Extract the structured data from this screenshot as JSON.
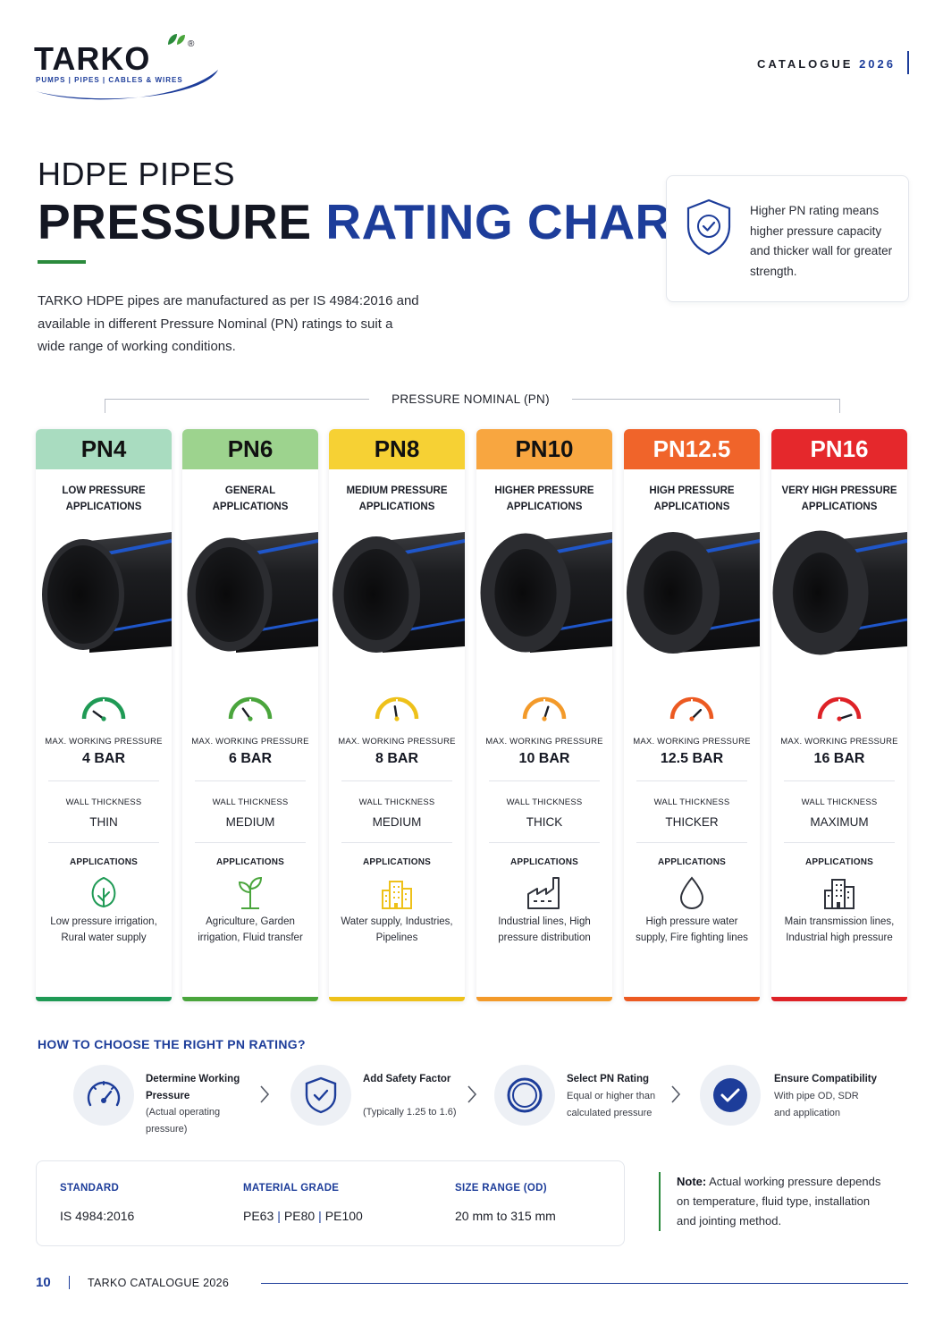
{
  "brand": {
    "name": "TARKO",
    "registered": "®",
    "tagline": "PUMPS | PIPES | CABLES & WIRES"
  },
  "header": {
    "catalogue_label": "CATALOGUE",
    "catalogue_year": "2026"
  },
  "hero": {
    "subtitle": "HDPE PIPES",
    "title_dark": "PRESSURE",
    "title_blue": "RATING CHART",
    "intro": "TARKO HDPE pipes are manufactured as per IS 4984:2016 and available in different Pressure Nominal (PN) ratings to suit a wide range of working conditions."
  },
  "info_card": {
    "icon": "shield-check-icon",
    "text": "Higher PN rating means higher pressure capacity and thicker wall for greater strength."
  },
  "pn_header": "PRESSURE NOMINAL (PN)",
  "labels": {
    "max_pressure": "MAX. WORKING PRESSURE",
    "wall_thickness": "WALL THICKNESS",
    "applications": "APPLICATIONS"
  },
  "ratings": [
    {
      "pn": "PN4",
      "subtitle_1": "LOW PRESSURE",
      "subtitle_2": "APPLICATIONS",
      "pressure": "4 BAR",
      "wall": "THIN",
      "app_icon": "leaf-icon",
      "applications": "Low pressure irrigation, Rural water supply",
      "color": "#a9dcc0",
      "accent": "#1f9a55",
      "gauge_level": 0.2
    },
    {
      "pn": "PN6",
      "subtitle_1": "GENERAL",
      "subtitle_2": "APPLICATIONS",
      "pressure": "6 BAR",
      "wall": "MEDIUM",
      "app_icon": "sprout-icon",
      "applications": "Agriculture, Garden irrigation, Fluid transfer",
      "color": "#9dd38e",
      "accent": "#4aa53c",
      "gauge_level": 0.3
    },
    {
      "pn": "PN8",
      "subtitle_1": "MEDIUM PRESSURE",
      "subtitle_2": "APPLICATIONS",
      "pressure": "8 BAR",
      "wall": "MEDIUM",
      "app_icon": "buildings-icon",
      "applications": "Water supply, Industries, Pipelines",
      "color": "#f6d134",
      "accent": "#eec11a",
      "gauge_level": 0.45
    },
    {
      "pn": "PN10",
      "subtitle_1": "HIGHER PRESSURE",
      "subtitle_2": "APPLICATIONS",
      "pressure": "10 BAR",
      "wall": "THICK",
      "app_icon": "factory-icon",
      "applications": "Industrial lines, High pressure distribution",
      "color": "#f8a640",
      "accent": "#f39a2a",
      "gauge_level": 0.6
    },
    {
      "pn": "PN12.5",
      "subtitle_1": "HIGH PRESSURE",
      "subtitle_2": "APPLICATIONS",
      "pressure": "12.5 BAR",
      "wall": "THICKER",
      "app_icon": "water-drop-icon",
      "applications": "High pressure water supply, Fire fighting lines",
      "color": "#f0642a",
      "accent": "#ec5a22",
      "gauge_level": 0.75
    },
    {
      "pn": "PN16",
      "subtitle_1": "VERY HIGH PRESSURE",
      "subtitle_2": "APPLICATIONS",
      "pressure": "16 BAR",
      "wall": "MAXIMUM",
      "app_icon": "city-icon",
      "applications": "Main transmission lines, Industrial high pressure",
      "color": "#e5282c",
      "accent": "#de2227",
      "gauge_level": 0.9
    }
  ],
  "howto": {
    "title": "HOW TO CHOOSE THE RIGHT PN RATING?",
    "steps": [
      {
        "icon": "gauge-icon",
        "title": "Determine Working Pressure",
        "desc": "(Actual operating pressure)"
      },
      {
        "icon": "shield-check-icon",
        "title": "Add Safety Factor",
        "desc": "(Typically 1.25 to 1.6)"
      },
      {
        "icon": "ring-icon",
        "title": "Select PN Rating",
        "desc": "Equal or higher than calculated pressure"
      },
      {
        "icon": "check-circle-icon",
        "title": "Ensure Compatibility",
        "desc": "With pipe OD, SDR and application"
      }
    ]
  },
  "specs": {
    "standard_label": "STANDARD",
    "standard_value": "IS 4984:2016",
    "material_label": "MATERIAL GRADE",
    "material_values": [
      "PE63",
      "PE80",
      "PE100"
    ],
    "size_label": "SIZE RANGE (OD)",
    "size_value": "20 mm to 315 mm"
  },
  "note": {
    "label": "Note:",
    "text": "Actual working pressure depends on temperature, fluid type, installation and jointing method."
  },
  "footer": {
    "page": "10",
    "text": "TARKO CATALOGUE 2026"
  }
}
